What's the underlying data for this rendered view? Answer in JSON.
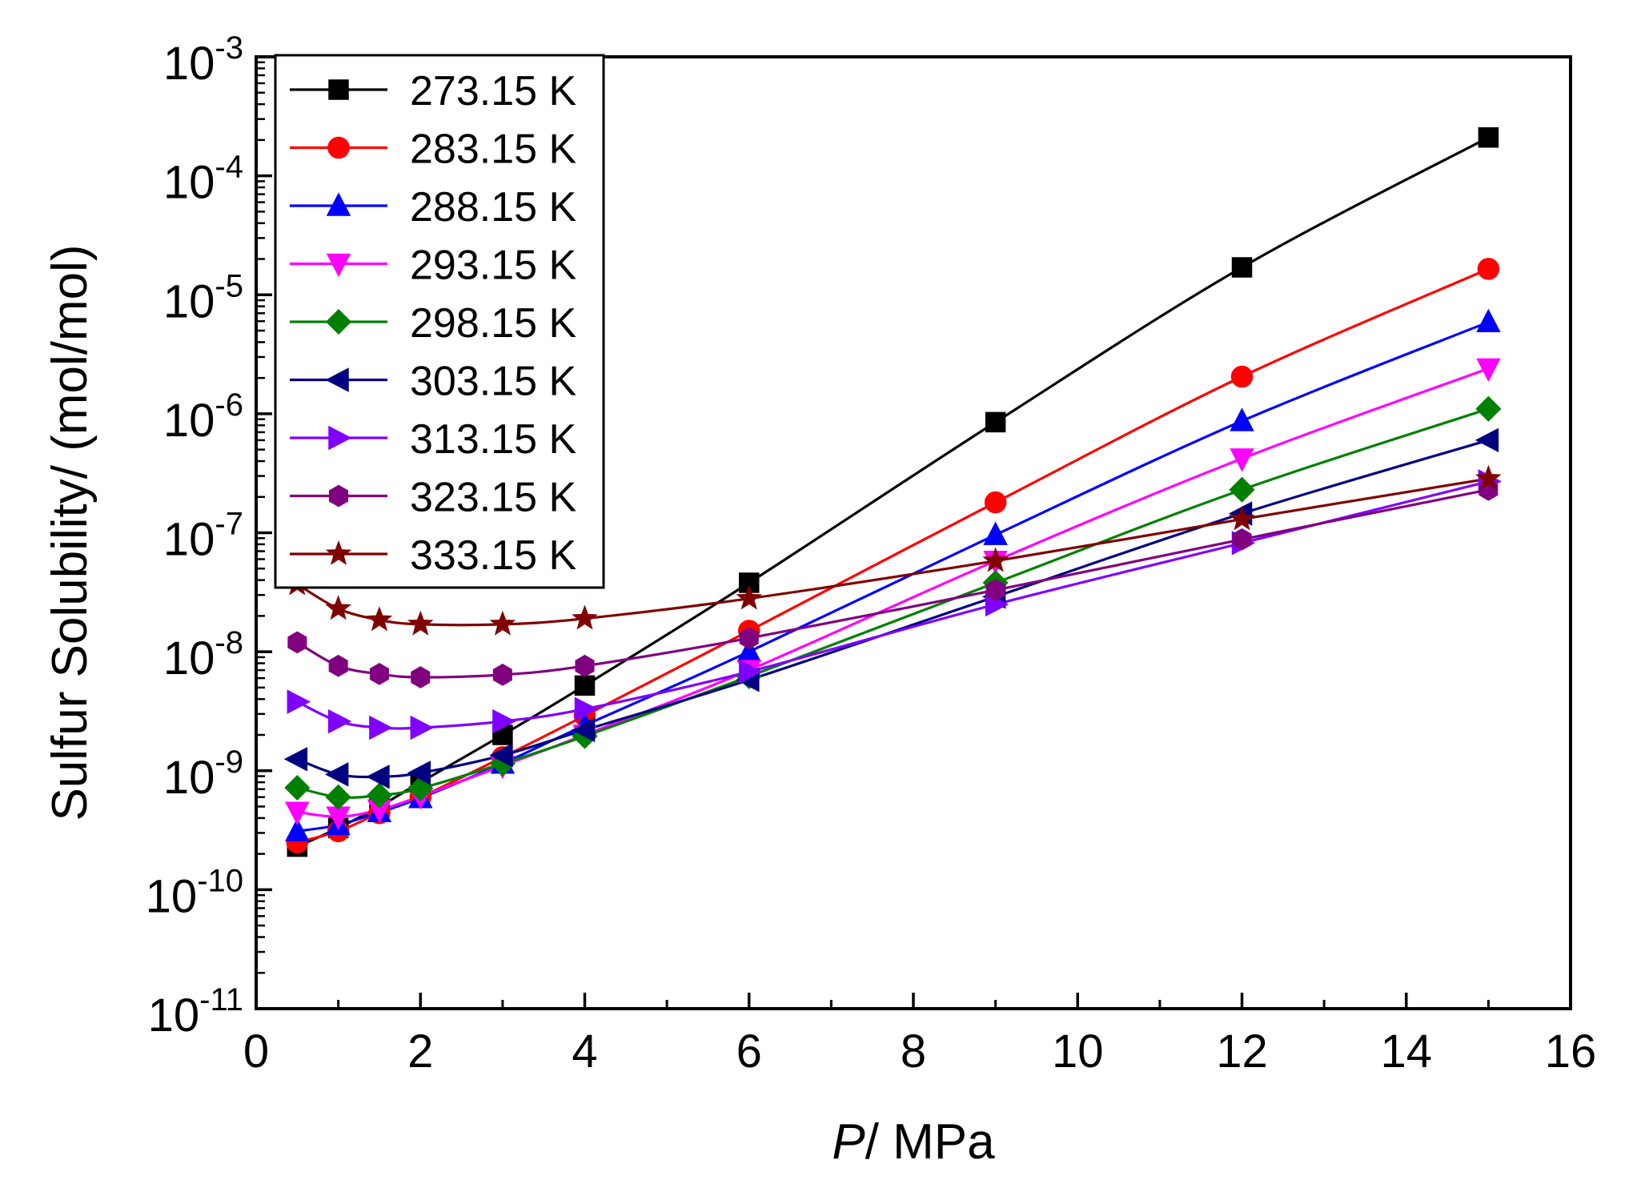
{
  "chart_data": {
    "type": "line",
    "title": "",
    "xlabel_italic": "P",
    "xlabel_rest": "/ MPa",
    "ylabel": "Sulfur Solubility/ (mol/mol)",
    "xlim": [
      0,
      16
    ],
    "ylim": [
      1e-11,
      0.001
    ],
    "yscale": "log",
    "legend_position": "top-left",
    "x_ticks": [
      0,
      2,
      4,
      6,
      8,
      10,
      12,
      14,
      16
    ],
    "x_tick_labels": [
      "0",
      "2",
      "4",
      "6",
      "8",
      "10",
      "12",
      "14",
      "16"
    ],
    "y_tick_labels": [
      {
        "base": "10",
        "exp": "-11"
      },
      {
        "base": "10",
        "exp": "-10"
      },
      {
        "base": "10",
        "exp": "-9"
      },
      {
        "base": "10",
        "exp": "-8"
      },
      {
        "base": "10",
        "exp": "-7"
      },
      {
        "base": "10",
        "exp": "-6"
      },
      {
        "base": "10",
        "exp": "-5"
      },
      {
        "base": "10",
        "exp": "-4"
      },
      {
        "base": "10",
        "exp": "-3"
      }
    ],
    "x": [
      0.5,
      1,
      1.5,
      2,
      3,
      4,
      6,
      9,
      12,
      15
    ],
    "series": [
      {
        "name": "273.15 K",
        "color": "#000000",
        "marker": "square",
        "values": [
          2.3e-10,
          3.3e-10,
          5e-10,
          8e-10,
          2e-09,
          5.2e-09,
          3.8e-08,
          8.5e-07,
          1.7e-05,
          0.00021
        ]
      },
      {
        "name": "283.15 K",
        "color": "#ff0000",
        "marker": "circle",
        "values": [
          2.5e-10,
          3.1e-10,
          4.4e-10,
          6e-10,
          1.3e-09,
          2.9e-09,
          1.5e-08,
          1.8e-07,
          2.05e-06,
          1.65e-05
        ]
      },
      {
        "name": "288.15 K",
        "color": "#0000ff",
        "marker": "triangle-up",
        "values": [
          3.1e-10,
          3.5e-10,
          4.5e-10,
          5.9e-10,
          1.15e-09,
          2.4e-09,
          1e-08,
          9.6e-08,
          8.7e-07,
          5.9e-06
        ]
      },
      {
        "name": "293.15 K",
        "color": "#ff00ff",
        "marker": "triangle-down",
        "values": [
          4.5e-10,
          4.1e-10,
          4.7e-10,
          6.1e-10,
          1.1e-09,
          2e-09,
          7e-09,
          5.8e-08,
          4.2e-07,
          2.4e-06
        ]
      },
      {
        "name": "298.15 K",
        "color": "#008000",
        "marker": "diamond",
        "values": [
          7.2e-10,
          6e-10,
          6.2e-10,
          7.1e-10,
          1.15e-09,
          1.95e-09,
          6.2e-09,
          3.8e-08,
          2.3e-07,
          1.1e-06
        ]
      },
      {
        "name": "303.15 K",
        "color": "#000080",
        "marker": "triangle-left",
        "values": [
          1.25e-09,
          9.3e-10,
          8.9e-10,
          9.6e-10,
          1.35e-09,
          2.2e-09,
          5.8e-09,
          2.9e-08,
          1.45e-07,
          6e-07
        ]
      },
      {
        "name": "313.15 K",
        "color": "#8000ff",
        "marker": "triangle-right",
        "values": [
          3.8e-09,
          2.6e-09,
          2.3e-09,
          2.3e-09,
          2.6e-09,
          3.3e-09,
          6.8e-09,
          2.5e-08,
          8.2e-08,
          2.7e-07
        ]
      },
      {
        "name": "323.15 K",
        "color": "#800080",
        "marker": "hexagon",
        "values": [
          1.2e-08,
          7.6e-09,
          6.5e-09,
          6.1e-09,
          6.4e-09,
          7.6e-09,
          1.3e-08,
          3.3e-08,
          8.8e-08,
          2.3e-07
        ]
      },
      {
        "name": "333.15 K",
        "color": "#800000",
        "marker": "star",
        "values": [
          3.7e-08,
          2.3e-08,
          1.85e-08,
          1.7e-08,
          1.7e-08,
          1.9e-08,
          2.8e-08,
          5.8e-08,
          1.3e-07,
          2.85e-07
        ]
      }
    ]
  }
}
